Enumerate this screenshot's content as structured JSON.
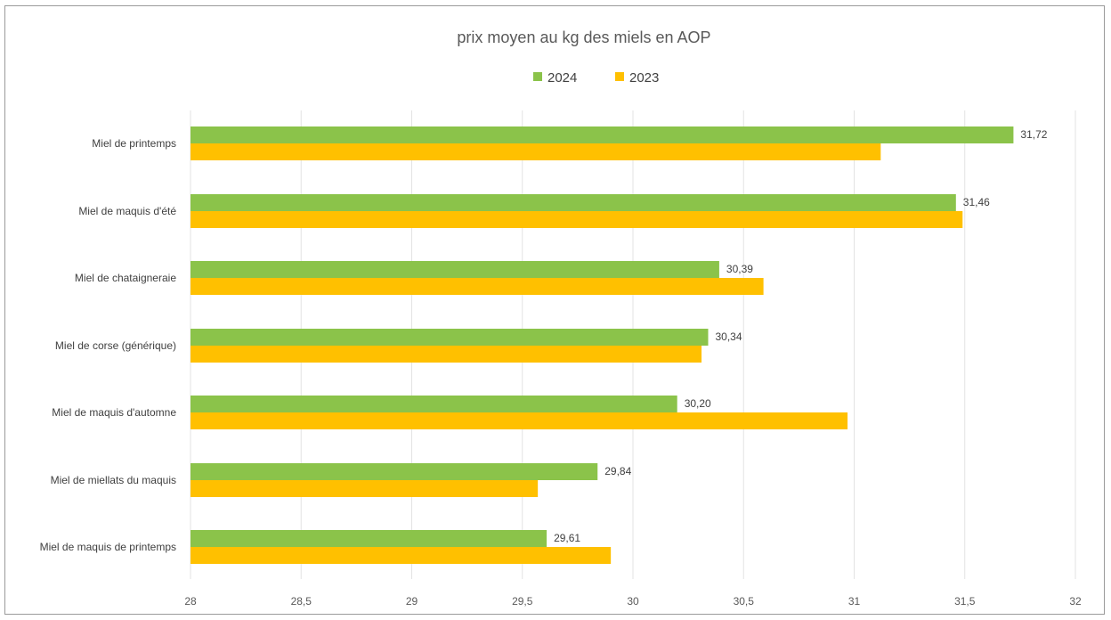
{
  "chart_data": {
    "type": "bar",
    "orientation": "horizontal",
    "title": "prix moyen au kg des miels en AOP",
    "xlabel": "",
    "ylabel": "",
    "categories": [
      "Miel de printemps",
      "Miel de maquis d'été",
      "Miel de chataigneraie",
      "Miel de corse (générique)",
      "Miel de maquis d'automne",
      "Miel de miellats du maquis",
      "Miel de maquis de printemps"
    ],
    "series": [
      {
        "name": "2024",
        "color": "#8bc34a",
        "values": [
          31.72,
          31.46,
          30.39,
          30.34,
          30.2,
          29.84,
          29.61
        ],
        "data_labels": [
          "31,72",
          "31,46",
          "30,39",
          "30,34",
          "30,20",
          "29,84",
          "29,61"
        ]
      },
      {
        "name": "2023",
        "color": "#ffc000",
        "values": [
          31.12,
          31.49,
          30.59,
          30.31,
          30.97,
          29.57,
          29.9
        ]
      }
    ],
    "xlim": [
      28,
      32
    ],
    "ticks": [
      28,
      28.5,
      29,
      29.5,
      30,
      30.5,
      31,
      31.5,
      32
    ],
    "tick_labels": [
      "28",
      "28,5",
      "29",
      "29,5",
      "30",
      "30,5",
      "31",
      "31,5",
      "32"
    ],
    "grid": true,
    "legend_position": "top"
  }
}
